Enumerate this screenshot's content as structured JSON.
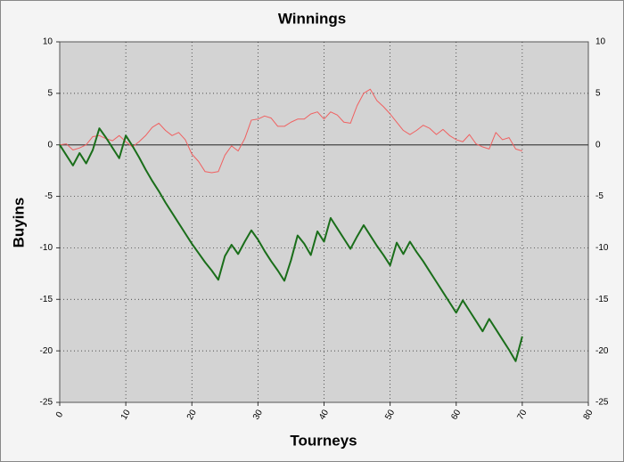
{
  "chart_data": {
    "type": "line",
    "title": "Winnings",
    "x_label": "Tourneys",
    "y_label": "Buyins",
    "x": [
      0,
      1,
      2,
      3,
      4,
      5,
      6,
      7,
      8,
      9,
      10,
      11,
      12,
      13,
      14,
      15,
      16,
      17,
      18,
      19,
      20,
      21,
      22,
      23,
      24,
      25,
      26,
      27,
      28,
      29,
      30,
      31,
      32,
      33,
      34,
      35,
      36,
      37,
      38,
      39,
      40,
      41,
      42,
      43,
      44,
      45,
      46,
      47,
      48,
      49,
      50,
      51,
      52,
      53,
      54,
      55,
      56,
      57,
      58,
      59,
      60,
      61,
      62,
      63,
      64,
      65,
      66,
      67,
      68,
      69,
      70
    ],
    "series": [
      {
        "color": "#f06060",
        "width": 1,
        "values": [
          0,
          0.1,
          -0.5,
          -0.3,
          0,
          0.8,
          0.9,
          0.6,
          0.4,
          0.9,
          0.3,
          -0.2,
          0.3,
          0.9,
          1.7,
          2.1,
          1.4,
          0.9,
          1.2,
          0.5,
          -0.9,
          -1.6,
          -2.6,
          -2.7,
          -2.6,
          -1,
          -0.1,
          -0.6,
          0.6,
          2.4,
          2.5,
          2.8,
          2.6,
          1.8,
          1.8,
          2.2,
          2.5,
          2.5,
          3,
          3.2,
          2.5,
          3.2,
          2.9,
          2.2,
          2.1,
          3.8,
          5,
          5.4,
          4.3,
          3.7,
          3,
          2.2,
          1.4,
          1,
          1.4,
          1.9,
          1.6,
          1,
          1.5,
          0.9,
          0.5,
          0.3,
          1,
          0.1,
          -0.2,
          -0.4,
          1.2,
          0.5,
          0.7,
          -0.4,
          -0.6
        ]
      },
      {
        "color": "#1a6e1a",
        "width": 2,
        "values": [
          0,
          -1,
          -2,
          -0.8,
          -1.8,
          -0.5,
          1.6,
          0.7,
          -0.3,
          -1.3,
          0.9,
          -0.1,
          -1.2,
          -2.4,
          -3.5,
          -4.5,
          -5.6,
          -6.6,
          -7.6,
          -8.6,
          -9.6,
          -10.5,
          -11.4,
          -12.2,
          -13.1,
          -10.8,
          -9.7,
          -10.6,
          -9.4,
          -8.3,
          -9.2,
          -10.3,
          -11.3,
          -12.2,
          -13.2,
          -11.2,
          -8.8,
          -9.6,
          -10.7,
          -8.4,
          -9.4,
          -7.1,
          -8.1,
          -9.1,
          -10.1,
          -8.9,
          -7.8,
          -8.8,
          -9.8,
          -10.7,
          -11.7,
          -9.5,
          -10.6,
          -9.4,
          -10.4,
          -11.3,
          -12.3,
          -13.3,
          -14.3,
          -15.3,
          -16.3,
          -15.1,
          -16.1,
          -17.1,
          -18.1,
          -16.9,
          -17.9,
          -18.9,
          -19.9,
          -21,
          -18.6
        ]
      }
    ],
    "xlim": [
      0,
      80
    ],
    "xticks": [
      0,
      10,
      20,
      30,
      40,
      50,
      60,
      70,
      80
    ],
    "ylim": [
      -25,
      10
    ],
    "yticks": [
      -25,
      -20,
      -15,
      -10,
      -5,
      0,
      5,
      10
    ],
    "grid": true
  }
}
